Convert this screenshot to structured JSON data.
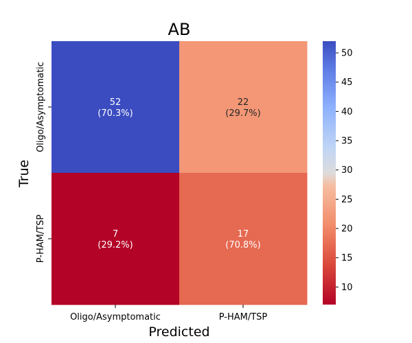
{
  "chart_data": {
    "type": "heatmap",
    "title": "AB",
    "xlabel": "Predicted",
    "ylabel": "True",
    "x_categories": [
      "Oligo/Asymptomatic",
      "P-HAM/TSP"
    ],
    "y_categories": [
      "Oligo/Asymptomatic",
      "P-HAM/TSP"
    ],
    "values": [
      [
        52,
        22
      ],
      [
        7,
        17
      ]
    ],
    "percentages": [
      [
        "(70.3%)",
        "(29.7%)"
      ],
      [
        "(29.2%)",
        "(70.8%)"
      ]
    ],
    "colormap": "coolwarm_r",
    "color_range": [
      7,
      52
    ],
    "colorbar_ticks": [
      10,
      15,
      20,
      25,
      30,
      35,
      40,
      45,
      50
    ]
  }
}
